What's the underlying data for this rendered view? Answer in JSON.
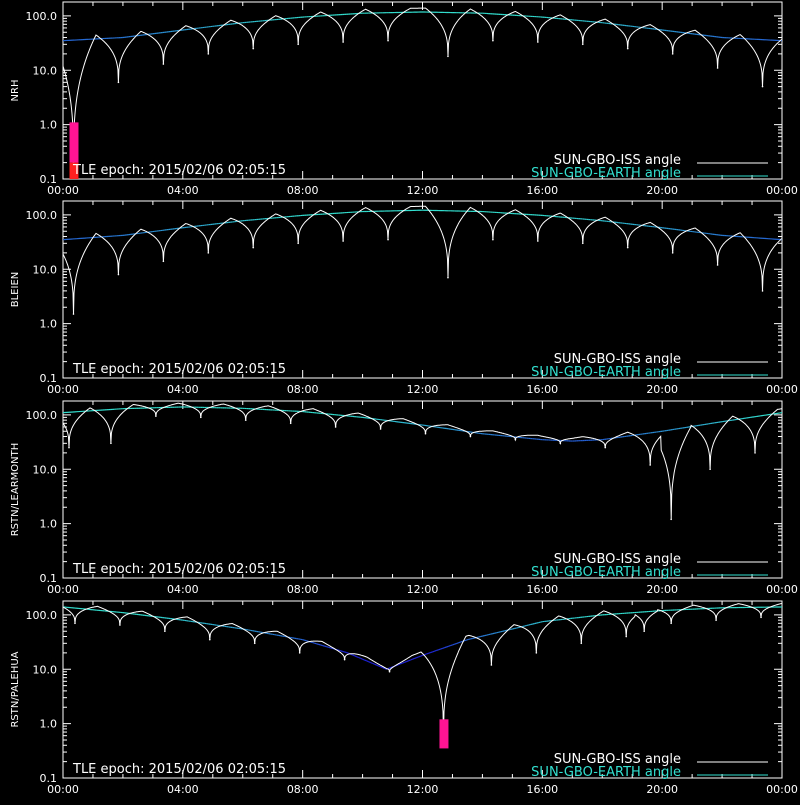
{
  "colors": {
    "background": "#000000",
    "axes": "#ffffff",
    "iss": "#ffffff",
    "earth_low": "#1e22d6",
    "earth_high": "#33e0d0",
    "magenta": "#ff1493",
    "red": "#ff2020"
  },
  "chart_data": [
    {
      "type": "line",
      "ylabel": "NRH",
      "yscale": "log",
      "ylim": [
        0.1,
        180
      ],
      "xlim_hours": [
        0,
        24
      ],
      "x_ticks": [
        "00:00",
        "04:00",
        "08:00",
        "12:00",
        "16:00",
        "20:00",
        "00:00"
      ],
      "y_ticks": [
        "0.1",
        "1.0",
        "10.0",
        "100.0"
      ],
      "annotation": "TLE epoch: 2015/02/06 02:05:15",
      "legend": [
        {
          "name": "SUN-GBO-ISS angle",
          "color": "#ffffff"
        },
        {
          "name": "SUN-GBO-EARTH angle",
          "color": "#33e0d0"
        }
      ],
      "earth_angle": {
        "x": [
          0,
          2,
          4,
          6,
          8,
          10,
          12,
          14,
          16,
          18,
          20,
          22,
          24
        ],
        "y": [
          35,
          40,
          55,
          75,
          95,
          112,
          118,
          112,
          95,
          75,
          55,
          40,
          35
        ]
      },
      "iss_dips": {
        "x": [
          0.35,
          1.85,
          3.35,
          4.85,
          6.35,
          7.85,
          9.35,
          10.85,
          12.85,
          14.35,
          15.85,
          17.35,
          18.85,
          20.35,
          21.85,
          23.35
        ],
        "y": [
          0.2,
          6,
          13,
          20,
          25,
          30,
          33,
          35,
          18,
          35,
          33,
          30,
          25,
          20,
          11,
          5
        ]
      },
      "visibility_bars": [
        {
          "x": 0.35,
          "from": 0.2,
          "to": 1.1,
          "color": "#ff1493"
        },
        {
          "x": 0.35,
          "from": 0.1,
          "to": 0.2,
          "color": "#ff2020"
        }
      ]
    },
    {
      "type": "line",
      "ylabel": "BLEIEN",
      "yscale": "log",
      "ylim": [
        0.1,
        180
      ],
      "xlim_hours": [
        0,
        24
      ],
      "x_ticks": [
        "00:00",
        "04:00",
        "08:00",
        "12:00",
        "16:00",
        "20:00",
        "00:00"
      ],
      "y_ticks": [
        "0.1",
        "1.0",
        "10.0",
        "100.0"
      ],
      "annotation": "TLE epoch: 2015/02/06 02:05:15",
      "legend": [
        {
          "name": "SUN-GBO-ISS angle",
          "color": "#ffffff"
        },
        {
          "name": "SUN-GBO-EARTH angle",
          "color": "#33e0d0"
        }
      ],
      "earth_angle": {
        "x": [
          0,
          2,
          4,
          6,
          8,
          10,
          12,
          14,
          16,
          18,
          20,
          22,
          24
        ],
        "y": [
          35,
          42,
          58,
          78,
          98,
          115,
          122,
          115,
          98,
          78,
          58,
          42,
          35
        ]
      },
      "iss_dips": {
        "x": [
          0.35,
          1.85,
          3.35,
          4.85,
          6.35,
          7.85,
          9.35,
          10.85,
          12.85,
          14.35,
          15.85,
          17.35,
          18.85,
          20.35,
          21.85,
          23.35
        ],
        "y": [
          1.5,
          8,
          14,
          20,
          25,
          30,
          33,
          35,
          7,
          35,
          33,
          30,
          25,
          20,
          12,
          4
        ]
      },
      "visibility_bars": []
    },
    {
      "type": "line",
      "ylabel": "RSTN/LEARMONTH",
      "yscale": "log",
      "ylim": [
        0.1,
        180
      ],
      "xlim_hours": [
        0,
        24
      ],
      "x_ticks": [
        "00:00",
        "04:00",
        "08:00",
        "12:00",
        "16:00",
        "20:00",
        "00:00"
      ],
      "y_ticks": [
        "0.1",
        "1.0",
        "10.0",
        "100.0"
      ],
      "annotation": "TLE epoch: 2015/02/06 02:05:15",
      "legend": [
        {
          "name": "SUN-GBO-ISS angle",
          "color": "#ffffff"
        },
        {
          "name": "SUN-GBO-EARTH angle",
          "color": "#33e0d0"
        }
      ],
      "earth_angle": {
        "x": [
          0,
          2,
          4,
          6,
          8,
          10,
          12,
          14,
          16,
          17,
          18,
          20,
          22,
          24
        ],
        "y": [
          110,
          130,
          140,
          132,
          115,
          90,
          65,
          45,
          35,
          33,
          35,
          50,
          75,
          110
        ]
      },
      "iss_dips": {
        "x": [
          0.2,
          1.6,
          3.1,
          4.6,
          6.1,
          7.6,
          9.1,
          10.6,
          12.1,
          13.6,
          15.1,
          16.6,
          18.1,
          19.6,
          20.3,
          21.6,
          23.1
        ],
        "y": [
          25,
          30,
          95,
          90,
          80,
          70,
          60,
          55,
          45,
          40,
          35,
          30,
          25,
          12,
          1.2,
          10,
          20
        ]
      },
      "visibility_bars": []
    },
    {
      "type": "line",
      "ylabel": "RSTN/PALEHUA",
      "yscale": "log",
      "ylim": [
        0.1,
        180
      ],
      "xlim_hours": [
        0,
        24
      ],
      "x_ticks": [
        "00:00",
        "04:00",
        "08:00",
        "12:00",
        "16:00",
        "20:00",
        "00:00"
      ],
      "y_ticks": [
        "0.1",
        "1.0",
        "10.0",
        "100.0"
      ],
      "annotation": "TLE epoch: 2015/02/06 02:05:15",
      "legend": [
        {
          "name": "SUN-GBO-ISS angle",
          "color": "#ffffff"
        },
        {
          "name": "SUN-GBO-EARTH angle",
          "color": "#33e0d0"
        }
      ],
      "earth_angle": {
        "x": [
          0,
          2,
          4,
          6,
          8,
          9.5,
          10.8,
          12,
          13.5,
          15,
          16,
          18,
          20,
          22,
          24
        ],
        "y": [
          140,
          110,
          80,
          55,
          35,
          20,
          10,
          18,
          35,
          55,
          75,
          100,
          120,
          135,
          140
        ]
      },
      "iss_dips": {
        "x": [
          0.4,
          1.9,
          3.4,
          4.9,
          6.4,
          7.9,
          9.4,
          10.9,
          12.7,
          14.3,
          15.8,
          17.3,
          18.8,
          19.4,
          20.3,
          21.8,
          23.3
        ],
        "y": [
          70,
          65,
          50,
          35,
          30,
          20,
          15,
          9,
          0.6,
          12,
          20,
          30,
          40,
          50,
          70,
          80,
          90
        ]
      },
      "visibility_bars": [
        {
          "x": 12.7,
          "from": 0.35,
          "to": 1.2,
          "color": "#ff1493"
        }
      ]
    }
  ]
}
